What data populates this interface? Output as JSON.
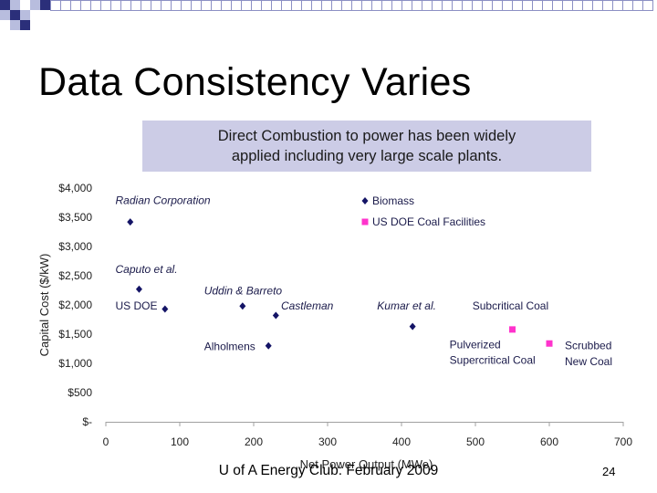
{
  "slide": {
    "title": "Data Consistency Varies",
    "callout": [
      "Direct Combustion to power has been widely",
      "applied including very large scale plants."
    ],
    "footer": "U of A Energy Club: February 2009",
    "page_number": "24"
  },
  "colors": {
    "biomass": "#141466",
    "coal": "#ff33cc",
    "callout_bg": "#cccce6",
    "header_squares": "#2b2f7a",
    "header_squares_light": "#b8bdde"
  },
  "chart_data": {
    "type": "scatter",
    "xlabel": "Net Power Output (MWe)",
    "ylabel": "Capital Cost  ($/kW)",
    "xlim": [
      0,
      700
    ],
    "ylim": [
      0,
      4000
    ],
    "x_ticks": [
      0,
      100,
      200,
      300,
      400,
      500,
      600,
      700
    ],
    "y_ticks": [
      {
        "value": 0,
        "label": "$-"
      },
      {
        "value": 500,
        "label": "$500"
      },
      {
        "value": 1000,
        "label": "$1,000"
      },
      {
        "value": 1500,
        "label": "$1,500"
      },
      {
        "value": 2000,
        "label": "$2,000"
      },
      {
        "value": 2500,
        "label": "$2,500"
      },
      {
        "value": 3000,
        "label": "$3,000"
      },
      {
        "value": 3500,
        "label": "$3,500"
      },
      {
        "value": 4000,
        "label": "$4,000"
      }
    ],
    "grid": false,
    "legend_position": "top-right",
    "series": [
      {
        "name": "Biomass",
        "marker": "diamond",
        "points": [
          {
            "x": 33,
            "y": 3420
          },
          {
            "x": 45,
            "y": 2270
          },
          {
            "x": 80,
            "y": 1930
          },
          {
            "x": 185,
            "y": 1980
          },
          {
            "x": 220,
            "y": 1300
          },
          {
            "x": 230,
            "y": 1820
          },
          {
            "x": 415,
            "y": 1630
          }
        ]
      },
      {
        "name": "US DOE Coal Facilities",
        "marker": "square",
        "points": [
          {
            "x": 550,
            "y": 1580
          },
          {
            "x": 600,
            "y": 1340
          }
        ]
      }
    ],
    "annotations": [
      {
        "text": "Radian Corporation",
        "x": 13,
        "y": 3730,
        "italic": true
      },
      {
        "text": "Caputo et al.",
        "x": 13,
        "y": 2550,
        "italic": true
      },
      {
        "text": "US DOE",
        "x": 13,
        "y": 1920,
        "italic": false
      },
      {
        "text": "Uddin & Barreto",
        "x": 133,
        "y": 2180,
        "italic": true
      },
      {
        "text": "Castleman",
        "x": 237,
        "y": 1920,
        "italic": true
      },
      {
        "text": "Alholmens",
        "x": 133,
        "y": 1230,
        "italic": false
      },
      {
        "text": "Kumar et al.",
        "x": 367,
        "y": 1920,
        "italic": true
      },
      {
        "text": "Subcritical Coal",
        "x": 496,
        "y": 1920,
        "italic": false
      },
      {
        "text": "Pulverized",
        "x": 465,
        "y": 1260,
        "italic": false
      },
      {
        "text": "Supercritical Coal",
        "x": 465,
        "y": 990,
        "italic": false
      },
      {
        "text": "Scrubbed",
        "x": 621,
        "y": 1240,
        "italic": false
      },
      {
        "text": "New Coal",
        "x": 621,
        "y": 970,
        "italic": false
      }
    ]
  }
}
